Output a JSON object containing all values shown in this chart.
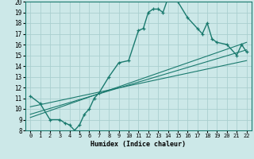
{
  "xlabel": "Humidex (Indice chaleur)",
  "bg_color": "#cce8e8",
  "grid_color": "#aacfcf",
  "line_color": "#1a7a6e",
  "xlim": [
    -0.5,
    22.5
  ],
  "ylim": [
    8,
    20
  ],
  "xticks": [
    0,
    1,
    2,
    3,
    4,
    5,
    6,
    7,
    8,
    9,
    10,
    11,
    12,
    13,
    14,
    15,
    16,
    17,
    18,
    19,
    20,
    21,
    22
  ],
  "yticks": [
    8,
    9,
    10,
    11,
    12,
    13,
    14,
    15,
    16,
    17,
    18,
    19,
    20
  ],
  "curve1_x": [
    0,
    1,
    2,
    3,
    3.5,
    4,
    4.5,
    5,
    5.5,
    6,
    6.5,
    7,
    8,
    9,
    10,
    11,
    11.5,
    12,
    12.5,
    13,
    13.5,
    14,
    14.5,
    15,
    16,
    17,
    17.5,
    18,
    18.5,
    19,
    20,
    21,
    21.5,
    22
  ],
  "curve1_y": [
    11.2,
    10.5,
    9.0,
    9.0,
    8.7,
    8.5,
    8.0,
    8.5,
    9.5,
    10.0,
    11.0,
    11.5,
    13.0,
    14.3,
    14.5,
    17.3,
    17.5,
    19.0,
    19.3,
    19.3,
    19.0,
    20.3,
    20.2,
    20.0,
    18.5,
    17.5,
    17.0,
    18.0,
    16.5,
    16.2,
    16.0,
    15.0,
    16.0,
    15.3
  ],
  "line1_x": [
    0,
    22
  ],
  "line1_y": [
    9.2,
    16.2
  ],
  "line2_x": [
    0,
    22
  ],
  "line2_y": [
    9.5,
    15.5
  ],
  "line3_x": [
    0,
    22
  ],
  "line3_y": [
    10.2,
    14.5
  ]
}
